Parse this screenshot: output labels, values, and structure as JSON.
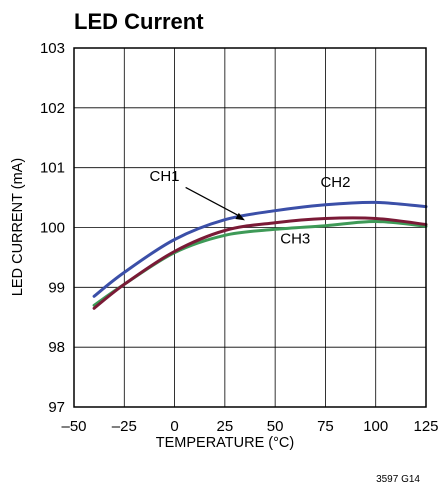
{
  "chart_data": {
    "type": "line",
    "title": "LED Current",
    "xlabel": "TEMPERATURE (°C)",
    "ylabel": "LED CURRENT (mA)",
    "xlim": [
      -50,
      125
    ],
    "ylim": [
      97,
      103
    ],
    "xticks": [
      "–50",
      "–25",
      "0",
      "25",
      "50",
      "75",
      "100",
      "125"
    ],
    "yticks": [
      "97",
      "98",
      "99",
      "100",
      "101",
      "102",
      "103"
    ],
    "grid": true,
    "series": [
      {
        "name": "CH1",
        "color": "#7a1a36",
        "x": [
          -40,
          -25,
          0,
          25,
          50,
          75,
          100,
          125
        ],
        "y": [
          98.65,
          99.05,
          99.6,
          99.95,
          100.08,
          100.15,
          100.15,
          100.05
        ]
      },
      {
        "name": "CH2",
        "color": "#3b4fa8",
        "x": [
          -40,
          -25,
          0,
          25,
          50,
          75,
          100,
          125
        ],
        "y": [
          98.85,
          99.25,
          99.8,
          100.13,
          100.28,
          100.38,
          100.42,
          100.35
        ]
      },
      {
        "name": "CH3",
        "color": "#3e9a57",
        "x": [
          -40,
          -25,
          0,
          25,
          50,
          75,
          100,
          125
        ],
        "y": [
          98.7,
          99.05,
          99.58,
          99.87,
          99.97,
          100.03,
          100.1,
          100.02
        ]
      }
    ],
    "figure_code": "3597 G14"
  }
}
